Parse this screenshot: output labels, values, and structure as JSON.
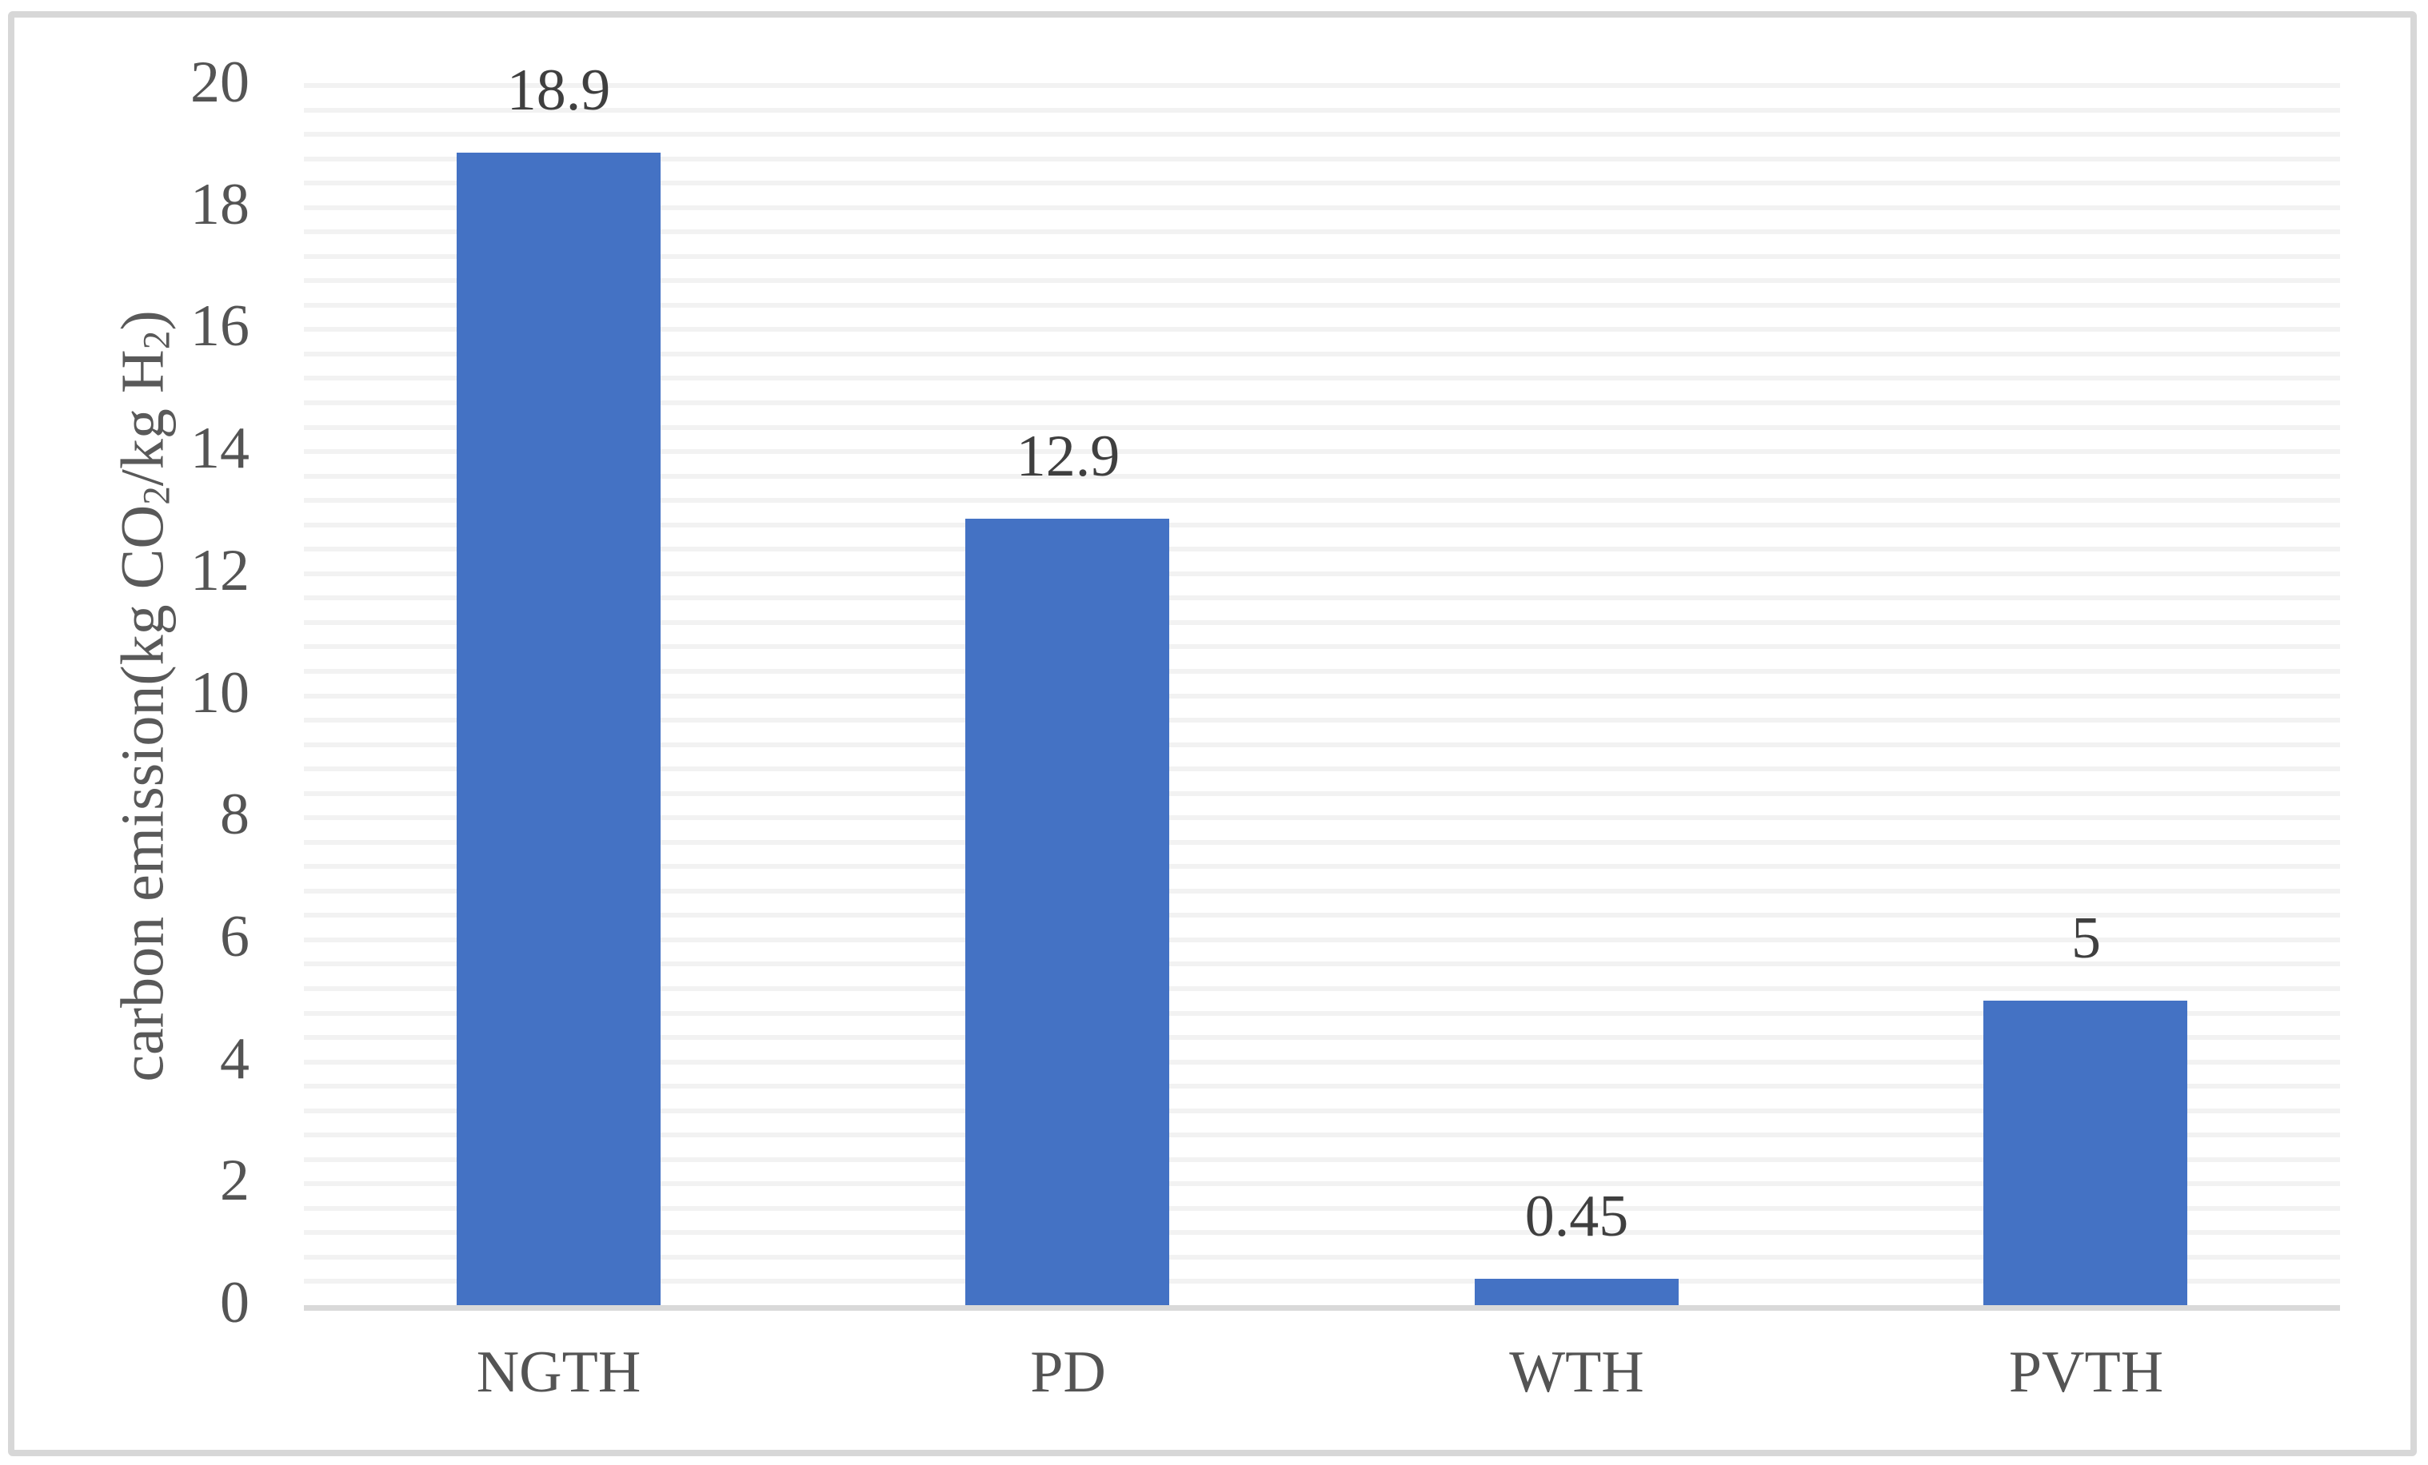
{
  "chart_data": {
    "type": "bar",
    "title": "",
    "categories": [
      "NGTH",
      "PD",
      "WTH",
      "PVTH"
    ],
    "values": [
      18.9,
      12.9,
      0.45,
      5
    ],
    "value_labels": [
      "18.9",
      "12.9",
      "0.45",
      "5"
    ],
    "series_name": "carbon emission",
    "xlabel": "",
    "ylabel": "carbon emission(kg CO2/kg H2)",
    "ylabel_parts": [
      {
        "text": "carbon emission(kg CO",
        "sub": false
      },
      {
        "text": "2",
        "sub": true
      },
      {
        "text": "/kg H",
        "sub": false
      },
      {
        "text": "2",
        "sub": true
      },
      {
        "text": ")",
        "sub": false
      }
    ],
    "ylim": [
      0,
      20
    ],
    "major_unit": 2,
    "minor_unit": 0.4,
    "ytick_labels": [
      "0",
      "2",
      "4",
      "6",
      "8",
      "10",
      "12",
      "14",
      "16",
      "18",
      "20"
    ],
    "grid": "minor-horizontal-on",
    "legend": "none",
    "data_labels_position": "outside-end",
    "colors": {
      "bar": "#4472c4",
      "gridline": "#f2f2f2",
      "axis_line": "#d9d9d9",
      "data_label_text": "#3f3f3f",
      "tick_text": "#545454",
      "axis_title_text": "#595959",
      "frame_border": "#d7d7d7",
      "background": "#ffffff"
    }
  }
}
